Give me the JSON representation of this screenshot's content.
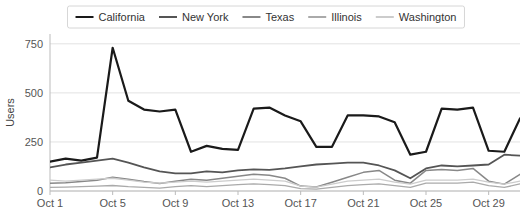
{
  "chart_data": {
    "type": "line",
    "title": "",
    "ylabel": "Users",
    "x": [
      0,
      1,
      2,
      3,
      4,
      5,
      6,
      7,
      8,
      9,
      10,
      11,
      12,
      13,
      14,
      15,
      16,
      17,
      18,
      19,
      20,
      21,
      22,
      23,
      24,
      25,
      26,
      27,
      28,
      29,
      30
    ],
    "xlim": [
      0,
      30
    ],
    "xticks": [
      {
        "value": 0,
        "label": "Oct 1"
      },
      {
        "value": 4,
        "label": "Oct 5"
      },
      {
        "value": 8,
        "label": "Oct 9"
      },
      {
        "value": 12,
        "label": "Oct 13"
      },
      {
        "value": 16,
        "label": "Oct 17"
      },
      {
        "value": 20,
        "label": "Oct 21"
      },
      {
        "value": 24,
        "label": "Oct 25"
      },
      {
        "value": 28,
        "label": "Oct 29"
      }
    ],
    "ylim": [
      0,
      800
    ],
    "yticks": [
      0,
      250,
      500,
      750
    ],
    "grid": true,
    "legend": "top",
    "series": [
      {
        "name": "California",
        "color": "#1a1a1a",
        "values": [
          150,
          165,
          155,
          170,
          730,
          460,
          415,
          405,
          415,
          200,
          230,
          215,
          210,
          420,
          425,
          385,
          355,
          225,
          225,
          385,
          385,
          380,
          350,
          185,
          200,
          420,
          415,
          425,
          205,
          200,
          370
        ]
      },
      {
        "name": "New York",
        "color": "#555555",
        "values": [
          120,
          135,
          145,
          155,
          165,
          145,
          120,
          100,
          90,
          90,
          100,
          95,
          105,
          110,
          108,
          115,
          125,
          135,
          140,
          145,
          145,
          130,
          105,
          65,
          115,
          130,
          125,
          130,
          135,
          185,
          180
        ]
      },
      {
        "name": "Texas",
        "color": "#888888",
        "values": [
          40,
          42,
          48,
          55,
          70,
          60,
          48,
          38,
          50,
          60,
          55,
          65,
          75,
          85,
          80,
          65,
          25,
          20,
          45,
          70,
          95,
          105,
          55,
          40,
          105,
          110,
          105,
          115,
          50,
          35,
          85
        ]
      },
      {
        "name": "Illinois",
        "color": "#aaaaaa",
        "values": [
          18,
          20,
          22,
          25,
          28,
          22,
          18,
          15,
          22,
          27,
          22,
          27,
          32,
          36,
          32,
          27,
          12,
          10,
          18,
          27,
          32,
          36,
          27,
          18,
          40,
          40,
          40,
          45,
          27,
          18,
          36
        ]
      },
      {
        "name": "Washington",
        "color": "#cccccc",
        "values": [
          55,
          50,
          55,
          60,
          65,
          55,
          45,
          40,
          45,
          50,
          45,
          50,
          55,
          60,
          55,
          50,
          25,
          20,
          35,
          50,
          55,
          60,
          45,
          35,
          55,
          55,
          55,
          60,
          45,
          35,
          50
        ]
      }
    ]
  }
}
